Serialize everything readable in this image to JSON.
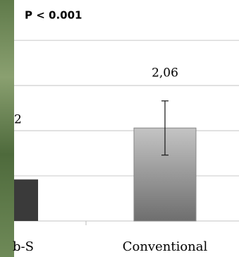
{
  "chart_data": {
    "type": "bar",
    "title": "P < 0.001",
    "categories": [
      "b-S",
      "Conventional"
    ],
    "series": [
      {
        "values": [
          0.92,
          2.06
        ],
        "value_labels": [
          null,
          "2,06"
        ],
        "errors": [
          null,
          0.6
        ],
        "colors": [
          "#3a3a3a",
          "#9a9a9a"
        ]
      }
    ],
    "annotations": [
      {
        "text": "2"
      }
    ],
    "ylim": [
      0,
      4.05
    ],
    "yticks": [
      0,
      1,
      2,
      3,
      4
    ],
    "grid": true
  }
}
